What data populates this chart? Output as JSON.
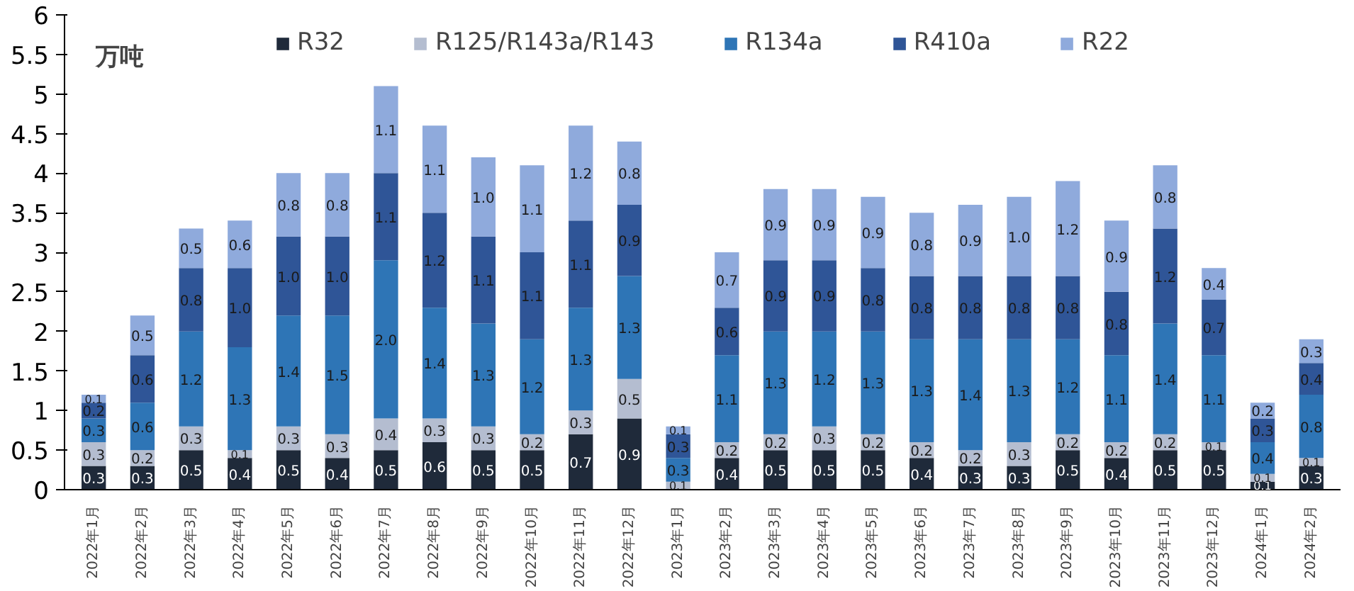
{
  "chart_data": {
    "type": "bar",
    "stacked": true,
    "ylabel": "万吨",
    "categories": [
      "2022年1月",
      "2022年2月",
      "2022年3月",
      "2022年4月",
      "2022年5月",
      "2022年6月",
      "2022年7月",
      "2022年8月",
      "2022年9月",
      "2022年10月",
      "2022年11月",
      "2022年12月",
      "2023年1月",
      "2023年2月",
      "2023年3月",
      "2023年4月",
      "2023年5月",
      "2023年6月",
      "2023年7月",
      "2023年8月",
      "2023年9月",
      "2023年10月",
      "2023年11月",
      "2023年12月",
      "2024年1月",
      "2024年2月"
    ],
    "series": [
      {
        "name": "R32",
        "color": "#1f2a3a",
        "values": [
          0.3,
          0.3,
          0.5,
          0.4,
          0.5,
          0.4,
          0.5,
          0.6,
          0.5,
          0.5,
          0.7,
          0.9,
          null,
          0.4,
          0.5,
          0.5,
          0.5,
          0.4,
          0.3,
          0.3,
          0.5,
          0.4,
          0.5,
          0.5,
          0.1,
          0.3
        ],
        "value_labels": [
          "0.3",
          "0.3",
          "0.5",
          "0.4",
          "0.5",
          "0.4",
          "0.5",
          "0.6",
          "0.5",
          "0.5",
          "0.7",
          "0.9",
          null,
          "0.4",
          "0.5",
          "0.5",
          "0.5",
          "0.4",
          "0.3",
          "0.3",
          "0.5",
          "0.4",
          "0.5",
          "0.5",
          "0.1",
          "0.3"
        ]
      },
      {
        "name": "R125/R143a/R143",
        "color": "#b4bdd0",
        "values": [
          0.3,
          0.2,
          0.3,
          0.1,
          0.3,
          0.3,
          0.4,
          0.3,
          0.3,
          0.2,
          0.3,
          0.5,
          0.1,
          0.2,
          0.2,
          0.3,
          0.2,
          0.2,
          0.2,
          0.3,
          0.2,
          0.2,
          0.2,
          0.1,
          0.1,
          0.1
        ],
        "value_labels": [
          "0.3",
          "0.2",
          "0.3",
          "0.1",
          "0.3",
          "0.3",
          "0.4",
          "0.3",
          "0.3",
          "0.2",
          "0.3",
          "0.5",
          "0.1",
          "0.2",
          "0.2",
          "0.3",
          "0.2",
          "0.2",
          "0.2",
          "0.3",
          "0.2",
          "0.2",
          "0.2",
          "0.1",
          "0.1",
          "0.1"
        ]
      },
      {
        "name": "R134a",
        "color": "#2e75b6",
        "values": [
          0.3,
          0.6,
          1.2,
          1.3,
          1.4,
          1.5,
          2.0,
          1.4,
          1.3,
          1.2,
          1.3,
          1.3,
          0.3,
          1.1,
          1.3,
          1.2,
          1.3,
          1.3,
          1.4,
          1.3,
          1.2,
          1.1,
          1.4,
          1.1,
          0.4,
          0.8
        ],
        "value_labels": [
          "0.3",
          "0.6",
          "1.2",
          "1.3",
          "1.4",
          "1.5",
          "2.0",
          "1.4",
          "1.3",
          "1.2",
          "1.3",
          "1.3",
          "0.3",
          "1.1",
          "1.3",
          "1.2",
          "1.3",
          "1.3",
          "1.4",
          "1.3",
          "1.2",
          "1.1",
          "1.4",
          "1.1",
          "0.4",
          "0.8"
        ]
      },
      {
        "name": "R410a",
        "color": "#2f5597",
        "values": [
          0.2,
          0.6,
          0.8,
          1.0,
          1.0,
          1.0,
          1.1,
          1.2,
          1.1,
          1.1,
          1.1,
          0.9,
          0.3,
          0.6,
          0.9,
          0.9,
          0.8,
          0.8,
          0.8,
          0.8,
          0.8,
          0.8,
          1.2,
          0.7,
          0.3,
          0.4
        ],
        "value_labels": [
          "0.2",
          "0.6",
          "0.8",
          "1.0",
          "1.0",
          "1.0",
          "1.1",
          "1.2",
          "1.1",
          "1.1",
          "1.1",
          "0.9",
          "0.3",
          "0.6",
          "0.9",
          "0.9",
          "0.8",
          "0.8",
          "0.8",
          "0.8",
          "0.8",
          "0.8",
          "1.2",
          "0.7",
          "0.3",
          "0.4"
        ]
      },
      {
        "name": "R22",
        "color": "#8faadc",
        "values": [
          0.1,
          0.5,
          0.5,
          0.6,
          0.8,
          0.8,
          1.1,
          1.1,
          1.0,
          1.1,
          1.2,
          0.8,
          0.1,
          0.7,
          0.9,
          0.9,
          0.9,
          0.8,
          0.9,
          1.0,
          1.2,
          0.9,
          0.8,
          0.4,
          0.2,
          0.3
        ],
        "value_labels": [
          "0.1",
          "0.5",
          "0.5",
          "0.6",
          "0.8",
          "0.8",
          "1.1",
          "1.1",
          "1.0",
          "1.1",
          "1.2",
          "0.8",
          "0.1",
          "0.7",
          "0.9",
          "0.9",
          "0.9",
          "0.8",
          "0.9",
          "1.0",
          "1.2",
          "0.9",
          "0.8",
          "0.4",
          "0.2",
          "0.3"
        ]
      }
    ],
    "ylim": [
      0,
      6
    ],
    "yticks": [
      0,
      0.5,
      1,
      1.5,
      2,
      2.5,
      3,
      3.5,
      4,
      4.5,
      5,
      5.5,
      6
    ],
    "grid": false,
    "legend": "top"
  }
}
